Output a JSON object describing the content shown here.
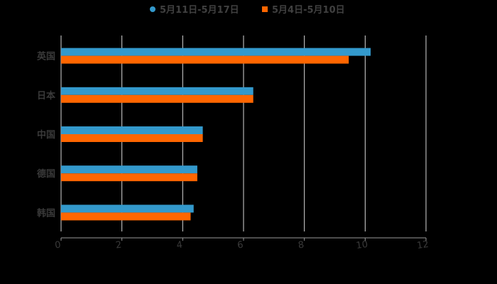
{
  "chart_data": {
    "type": "bar",
    "orientation": "horizontal",
    "title": "",
    "xlabel": "",
    "ylabel": "",
    "categories": [
      "英国",
      "日本",
      "中国",
      "德国",
      "韩国"
    ],
    "series": [
      {
        "name": "5月11日-5月17日",
        "color": "#3399CC",
        "marker": "circle",
        "values": [
          10.18,
          6.32,
          4.66,
          4.48,
          4.36
        ]
      },
      {
        "name": "5月4日-5月10日",
        "color": "#FF6600",
        "marker": "square",
        "values": [
          9.46,
          6.32,
          4.66,
          4.48,
          4.26
        ]
      }
    ],
    "xlim": [
      0,
      12
    ],
    "xticks": [
      0,
      2,
      4,
      6,
      8,
      10,
      12
    ],
    "grid": "vertical",
    "legend_position": "top"
  },
  "colors": {
    "background": "#000000",
    "grid": "#d9d9d9",
    "text": "#3a3a3a"
  }
}
